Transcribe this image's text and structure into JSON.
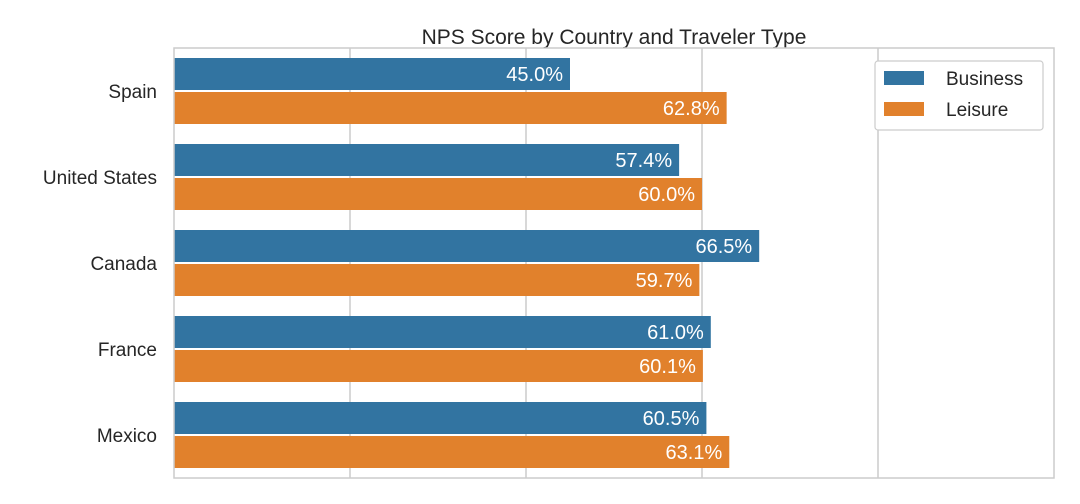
{
  "chart_data": {
    "type": "bar",
    "orientation": "horizontal",
    "title": "NPS Score by Country and Traveler Type",
    "xlabel": "",
    "ylabel": "",
    "categories": [
      "Spain",
      "United States",
      "Canada",
      "France",
      "Mexico"
    ],
    "series": [
      {
        "name": "Business",
        "color": "#3274a1",
        "values": [
          45.0,
          57.4,
          66.5,
          61.0,
          60.5
        ],
        "labels": [
          "45.0%",
          "57.4%",
          "66.5%",
          "61.0%",
          "60.5%"
        ]
      },
      {
        "name": "Leisure",
        "color": "#e1812c",
        "values": [
          62.8,
          60.0,
          59.7,
          60.1,
          63.1
        ],
        "labels": [
          "62.8%",
          "60.0%",
          "59.7%",
          "60.1%",
          "63.1%"
        ]
      }
    ],
    "xlim": [
      0,
      100
    ],
    "grid": true,
    "legend_position": "top-right"
  }
}
